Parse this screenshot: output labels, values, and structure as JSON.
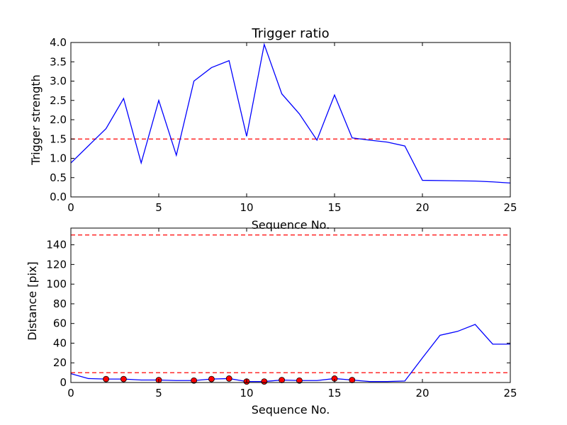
{
  "chart_data": [
    {
      "type": "line",
      "title": "Trigger ratio",
      "xlabel": "Sequence No.",
      "ylabel": "Trigger strength",
      "xlim": [
        0,
        25
      ],
      "ylim": [
        0,
        4.0
      ],
      "xticks": [
        "0",
        "5",
        "10",
        "15",
        "20",
        "25"
      ],
      "yticks": [
        "0.0",
        "0.5",
        "1.0",
        "1.5",
        "2.0",
        "2.5",
        "3.0",
        "3.5",
        "4.0"
      ],
      "grid": false,
      "series": [
        {
          "color": "#0000ff",
          "x": [
            0,
            2,
            3,
            4,
            5,
            6,
            7,
            8,
            9,
            10,
            11,
            12,
            13,
            14,
            15,
            16,
            17,
            18,
            19,
            20,
            23,
            24,
            25
          ],
          "values": [
            0.88,
            1.77,
            2.55,
            0.88,
            2.5,
            1.08,
            3.0,
            3.35,
            3.53,
            1.57,
            3.95,
            2.67,
            2.15,
            1.47,
            2.64,
            1.53,
            1.47,
            1.42,
            1.32,
            0.43,
            0.41,
            0.39,
            0.36
          ]
        }
      ],
      "reference_lines": [
        {
          "y": 1.5,
          "color": "#ff0000",
          "style": "dashed"
        }
      ]
    },
    {
      "type": "line",
      "title": "",
      "xlabel": "Sequence No.",
      "ylabel": "Distance [pix]",
      "xlim": [
        0,
        25
      ],
      "ylim": [
        0,
        157
      ],
      "xticks": [
        "0",
        "5",
        "10",
        "15",
        "20",
        "25"
      ],
      "yticks": [
        "0",
        "20",
        "40",
        "60",
        "80",
        "100",
        "120",
        "140"
      ],
      "grid": false,
      "series": [
        {
          "color": "#0000ff",
          "x": [
            0,
            1,
            2,
            3,
            4,
            5,
            6,
            7,
            8,
            9,
            10,
            11,
            12,
            13,
            14,
            15,
            16,
            17,
            18,
            19,
            20,
            21,
            22,
            23,
            24,
            25
          ],
          "values": [
            9,
            4,
            3.5,
            3.5,
            2.5,
            2.5,
            2,
            2,
            3.5,
            4,
            1,
            1,
            2.5,
            2,
            2,
            4,
            2.5,
            1,
            1,
            1.5,
            25,
            48,
            52,
            59,
            39,
            39
          ]
        }
      ],
      "markers": {
        "color": "#ff0000",
        "x": [
          2,
          3,
          5,
          7,
          8,
          9,
          10,
          11,
          12,
          13,
          15,
          16
        ],
        "values": [
          3.5,
          3.5,
          2.5,
          2,
          3.5,
          4,
          1,
          1,
          2.5,
          2,
          4,
          2.5
        ]
      },
      "reference_lines": [
        {
          "y": 150,
          "color": "#ff0000",
          "style": "dashed"
        },
        {
          "y": 10,
          "color": "#ff0000",
          "style": "dashed"
        }
      ]
    }
  ]
}
